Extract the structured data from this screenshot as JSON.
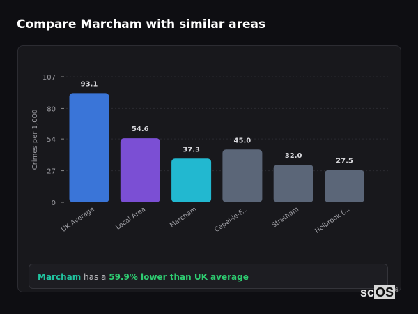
{
  "title": "Compare Marcham with similar areas",
  "chart_data": {
    "type": "bar",
    "title": "",
    "xlabel": "",
    "ylabel": "Crimes per 1,000",
    "ylim": [
      0,
      107
    ],
    "yticks": [
      0,
      27,
      54,
      80,
      107
    ],
    "grid": true,
    "categories": [
      "UK Average",
      "Local Area",
      "Marcham",
      "Capel-le-F...",
      "Stretham",
      "Holbrook (..."
    ],
    "values": [
      93.1,
      54.6,
      37.3,
      45.0,
      32.0,
      27.5
    ],
    "data_labels": [
      "93.1",
      "54.6",
      "37.3",
      "45.0",
      "32.0",
      "27.5"
    ],
    "colors": [
      "#3a75d8",
      "#7b4fd4",
      "#22b8d0",
      "#5b6678",
      "#5b6678",
      "#5b6678"
    ]
  },
  "summary": {
    "area": "Marcham",
    "middle": " has a ",
    "comparison": "59.9% lower than UK average"
  },
  "logo": {
    "text_a": "sc",
    "text_b": "OS",
    "mark": "®"
  }
}
